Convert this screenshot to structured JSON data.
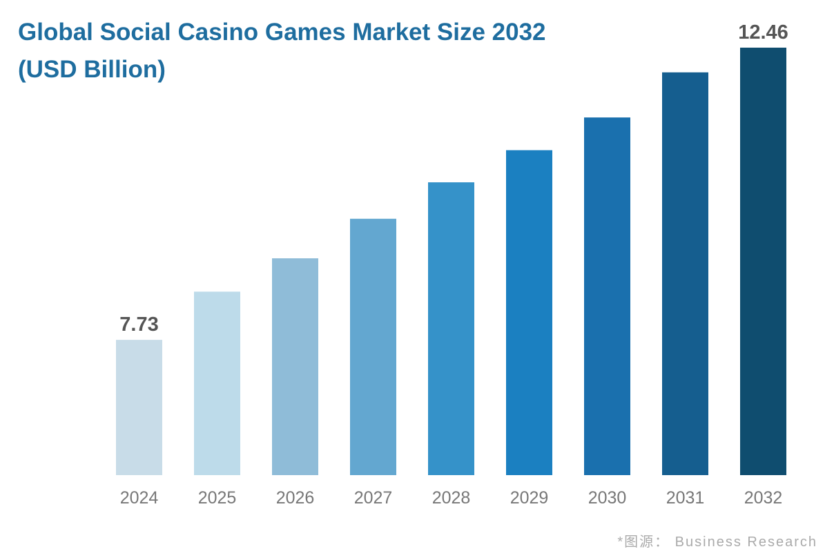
{
  "chart_data": {
    "type": "bar",
    "title": "Global Social Casino Games Market Size 2032 (USD Billion)",
    "xlabel": "",
    "ylabel": "",
    "categories": [
      "2024",
      "2025",
      "2026",
      "2027",
      "2028",
      "2029",
      "2030",
      "2031",
      "2032"
    ],
    "values": [
      7.73,
      8.51,
      9.05,
      9.69,
      10.28,
      10.8,
      11.33,
      12.06,
      12.46
    ],
    "data_labels": {
      "2024": "7.73",
      "2032": "12.46"
    },
    "ylim": [
      5.54,
      12.46
    ],
    "grid": false,
    "colors": [
      "#c8dce8",
      "#bddbea",
      "#8fbcd8",
      "#63a7d0",
      "#3592c9",
      "#1b80c1",
      "#1a70ae",
      "#155e8f",
      "#0f4d6f"
    ]
  },
  "source": "*图源： Business Research"
}
